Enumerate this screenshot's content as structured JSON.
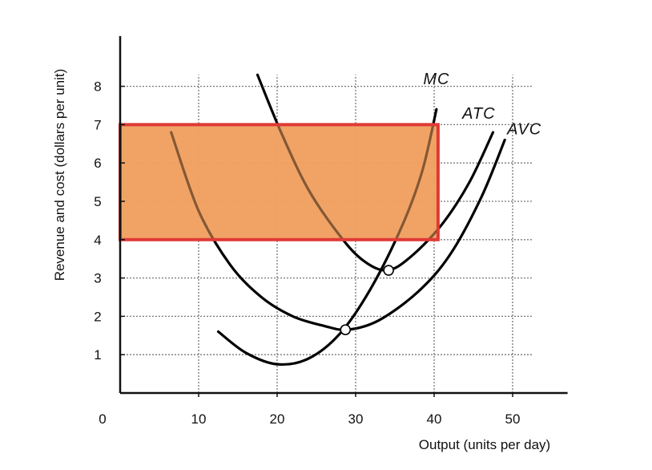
{
  "chart_data": {
    "type": "line",
    "xlabel": "Output (units per day)",
    "ylabel": "Revenue and cost (dollars per unit)",
    "origin_label": "0",
    "xlim": [
      0,
      57
    ],
    "ylim": [
      0,
      9
    ],
    "x_ticks": [
      {
        "value": 10,
        "label": "10"
      },
      {
        "value": 20,
        "label": "20"
      },
      {
        "value": 30,
        "label": "30"
      },
      {
        "value": 40,
        "label": "40"
      },
      {
        "value": 50,
        "label": "50"
      }
    ],
    "y_ticks": [
      {
        "value": 1,
        "label": "1"
      },
      {
        "value": 2,
        "label": "2"
      },
      {
        "value": 3,
        "label": "3"
      },
      {
        "value": 4,
        "label": "4"
      },
      {
        "value": 5,
        "label": "5"
      },
      {
        "value": 6,
        "label": "6"
      },
      {
        "value": 7,
        "label": "7"
      },
      {
        "value": 8,
        "label": "8"
      }
    ],
    "grid_y": [
      1,
      2,
      3,
      4,
      5,
      6,
      7,
      8
    ],
    "grid_x": [
      10,
      20,
      30,
      40,
      50
    ],
    "series": [
      {
        "name": "MC",
        "points": [
          [
            12.5,
            1.6
          ],
          [
            16,
            1.05
          ],
          [
            20,
            0.75
          ],
          [
            24,
            0.9
          ],
          [
            28,
            1.55
          ],
          [
            32,
            2.75
          ],
          [
            36,
            4.4
          ],
          [
            38.5,
            5.8
          ],
          [
            40.3,
            7.4
          ]
        ]
      },
      {
        "name": "ATC",
        "points": [
          [
            17.5,
            8.3
          ],
          [
            20.5,
            6.8
          ],
          [
            24,
            5.3
          ],
          [
            28,
            4.1
          ],
          [
            31,
            3.45
          ],
          [
            34,
            3.2
          ],
          [
            37,
            3.55
          ],
          [
            41,
            4.4
          ],
          [
            44.5,
            5.5
          ],
          [
            47.5,
            6.8
          ]
        ]
      },
      {
        "name": "AVC",
        "points": [
          [
            6.5,
            6.8
          ],
          [
            10,
            4.75
          ],
          [
            14,
            3.35
          ],
          [
            18,
            2.5
          ],
          [
            22,
            2.0
          ],
          [
            26,
            1.75
          ],
          [
            29,
            1.65
          ],
          [
            33,
            1.9
          ],
          [
            38,
            2.65
          ],
          [
            42,
            3.6
          ],
          [
            46,
            5.1
          ],
          [
            49,
            6.6
          ]
        ]
      }
    ],
    "curve_labels": [
      {
        "series": "MC",
        "text": "MC",
        "x": 40.3,
        "y": 8.05
      },
      {
        "series": "ATC",
        "text": "ATC",
        "x": 45.7,
        "y": 7.15
      },
      {
        "series": "AVC",
        "text": "AVC",
        "x": 51.5,
        "y": 6.75
      }
    ],
    "markers": [
      {
        "x": 34.2,
        "y": 3.2
      },
      {
        "x": 28.7,
        "y": 1.65
      }
    ],
    "highlight_rect": {
      "x": [
        0,
        40.5
      ],
      "y": [
        4,
        7
      ],
      "fill": "#f0a060",
      "stroke": "#e03a36"
    },
    "colors": {
      "curve": "#000000",
      "grid": "#777777",
      "axis": "#111111"
    }
  }
}
